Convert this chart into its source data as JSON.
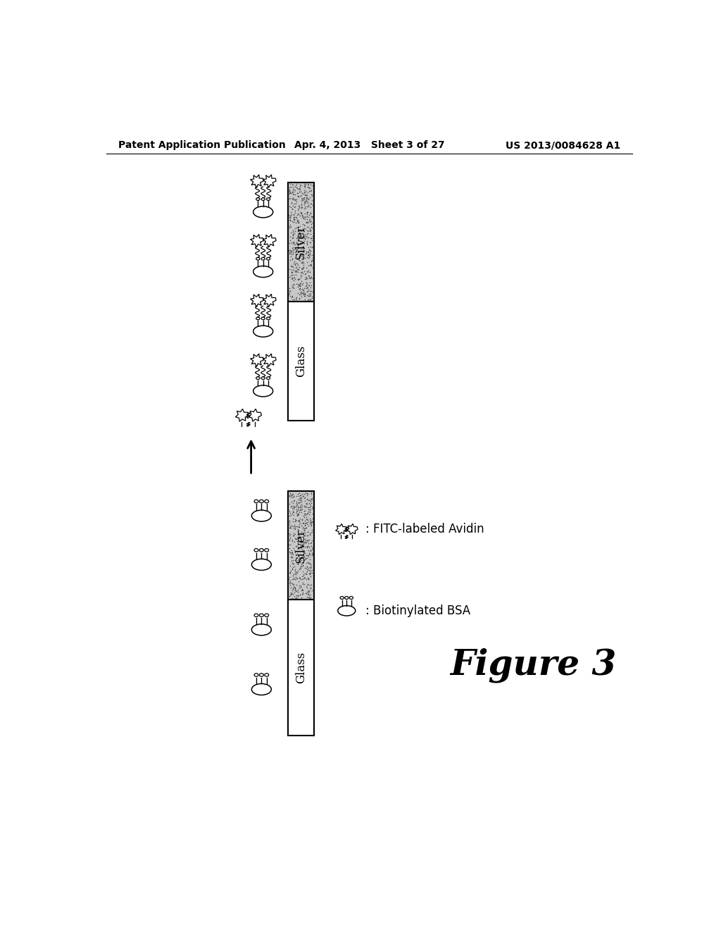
{
  "header_left": "Patent Application Publication",
  "header_center": "Apr. 4, 2013   Sheet 3 of 27",
  "header_right": "US 2013/0084628 A1",
  "figure_label": "Figure 3",
  "legend_bsa": ": Biotinylated BSA",
  "legend_avidin": ": FITC-labeled Avidin",
  "bg_color": "#ffffff"
}
